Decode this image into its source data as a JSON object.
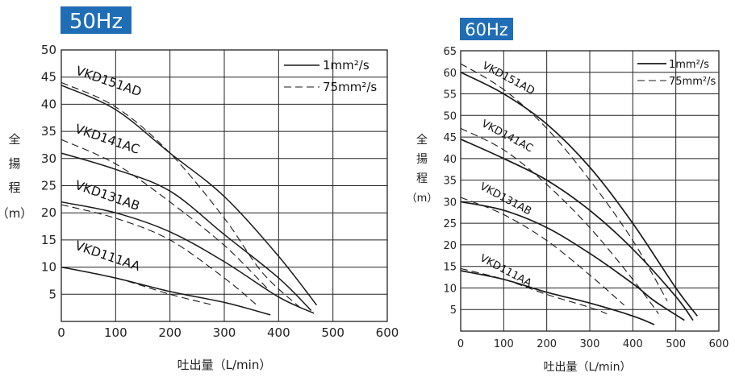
{
  "chart_data": [
    {
      "type": "line",
      "title": "50Hz",
      "xlabel": "吐出量（L/min）",
      "ylabel": "全揚程（m）",
      "xlim": [
        0,
        600
      ],
      "ylim": [
        0,
        50
      ],
      "xticks": [
        "0",
        "100",
        "200",
        "300",
        "400",
        "500",
        "600"
      ],
      "yticks": [
        "5",
        "10",
        "15",
        "20",
        "25",
        "30",
        "35",
        "40",
        "45",
        "50"
      ],
      "grid": true,
      "legend": {
        "position": "top-right",
        "entries": [
          {
            "label": "1mm²/s",
            "style": "solid"
          },
          {
            "label": "75mm²/s",
            "style": "dashed"
          }
        ]
      },
      "series": [
        {
          "name": "VKD151AD",
          "solid": [
            [
              0,
              43.5
            ],
            [
              100,
              39
            ],
            [
              200,
              31
            ],
            [
              300,
              23
            ],
            [
              400,
              12
            ],
            [
              470,
              3
            ]
          ],
          "dashed": [
            [
              0,
              44
            ],
            [
              100,
              39.5
            ],
            [
              200,
              31
            ],
            [
              300,
              19
            ],
            [
              370,
              9
            ],
            [
              440,
              2.5
            ]
          ]
        },
        {
          "name": "VKD141AC",
          "solid": [
            [
              0,
              31
            ],
            [
              100,
              28
            ],
            [
              200,
              24
            ],
            [
              300,
              16
            ],
            [
              400,
              8
            ],
            [
              460,
              2
            ]
          ],
          "dashed": [
            [
              0,
              33.5
            ],
            [
              100,
              29
            ],
            [
              200,
              22
            ],
            [
              300,
              14
            ],
            [
              380,
              6
            ]
          ]
        },
        {
          "name": "VKD131AB",
          "solid": [
            [
              0,
              22
            ],
            [
              100,
              20
            ],
            [
              200,
              16.5
            ],
            [
              300,
              11
            ],
            [
              400,
              4.5
            ],
            [
              465,
              1.5
            ]
          ],
          "dashed": [
            [
              0,
              21.5
            ],
            [
              100,
              19
            ],
            [
              200,
              15
            ],
            [
              300,
              8
            ],
            [
              360,
              3
            ]
          ]
        },
        {
          "name": "VKD111AA",
          "solid": [
            [
              0,
              10
            ],
            [
              100,
              8
            ],
            [
              200,
              5.5
            ],
            [
              300,
              3.5
            ],
            [
              385,
              1.2
            ]
          ],
          "dashed": [
            [
              0,
              10
            ],
            [
              100,
              8
            ],
            [
              200,
              5
            ],
            [
              280,
              3
            ]
          ]
        }
      ]
    },
    {
      "type": "line",
      "title": "60Hz",
      "xlabel": "吐出量（L/min）",
      "ylabel": "全揚程（m）",
      "xlim": [
        0,
        600
      ],
      "ylim": [
        0,
        65
      ],
      "xticks": [
        "0",
        "100",
        "200",
        "300",
        "400",
        "500",
        "600"
      ],
      "yticks": [
        "5",
        "10",
        "15",
        "20",
        "25",
        "30",
        "35",
        "40",
        "45",
        "50",
        "55",
        "60",
        "65"
      ],
      "grid": true,
      "legend": {
        "position": "top-right",
        "entries": [
          {
            "label": "1mm²/s",
            "style": "solid"
          },
          {
            "label": "75mm²/s",
            "style": "dashed"
          }
        ]
      },
      "series": [
        {
          "name": "VKD151AD",
          "solid": [
            [
              0,
              60
            ],
            [
              100,
              55
            ],
            [
              200,
              48
            ],
            [
              300,
              38
            ],
            [
              400,
              25
            ],
            [
              500,
              10
            ],
            [
              550,
              3.5
            ]
          ],
          "dashed": [
            [
              0,
              62
            ],
            [
              100,
              56
            ],
            [
              200,
              47
            ],
            [
              300,
              35
            ],
            [
              400,
              21
            ],
            [
              480,
              7
            ]
          ]
        },
        {
          "name": "VKD141AC",
          "solid": [
            [
              0,
              44.5
            ],
            [
              100,
              40
            ],
            [
              200,
              35
            ],
            [
              300,
              28
            ],
            [
              400,
              19
            ],
            [
              500,
              8
            ],
            [
              540,
              2.5
            ]
          ],
          "dashed": [
            [
              0,
              47
            ],
            [
              100,
              42
            ],
            [
              200,
              34
            ],
            [
              300,
              24
            ],
            [
              400,
              12
            ],
            [
              460,
              4
            ]
          ]
        },
        {
          "name": "VKD131AB",
          "solid": [
            [
              0,
              30
            ],
            [
              100,
              28
            ],
            [
              200,
              24
            ],
            [
              300,
              18
            ],
            [
              400,
              11
            ],
            [
              450,
              7
            ],
            [
              520,
              2.5
            ]
          ],
          "dashed": [
            [
              0,
              31
            ],
            [
              100,
              27
            ],
            [
              200,
              21
            ],
            [
              300,
              13
            ],
            [
              380,
              6
            ]
          ]
        },
        {
          "name": "VKD111AA",
          "solid": [
            [
              0,
              14
            ],
            [
              100,
              12
            ],
            [
              200,
              9
            ],
            [
              300,
              6.5
            ],
            [
              400,
              3.5
            ],
            [
              450,
              1.5
            ]
          ],
          "dashed": [
            [
              0,
              14.5
            ],
            [
              100,
              12
            ],
            [
              200,
              8.5
            ],
            [
              300,
              5.5
            ],
            [
              340,
              4
            ]
          ]
        }
      ]
    }
  ]
}
